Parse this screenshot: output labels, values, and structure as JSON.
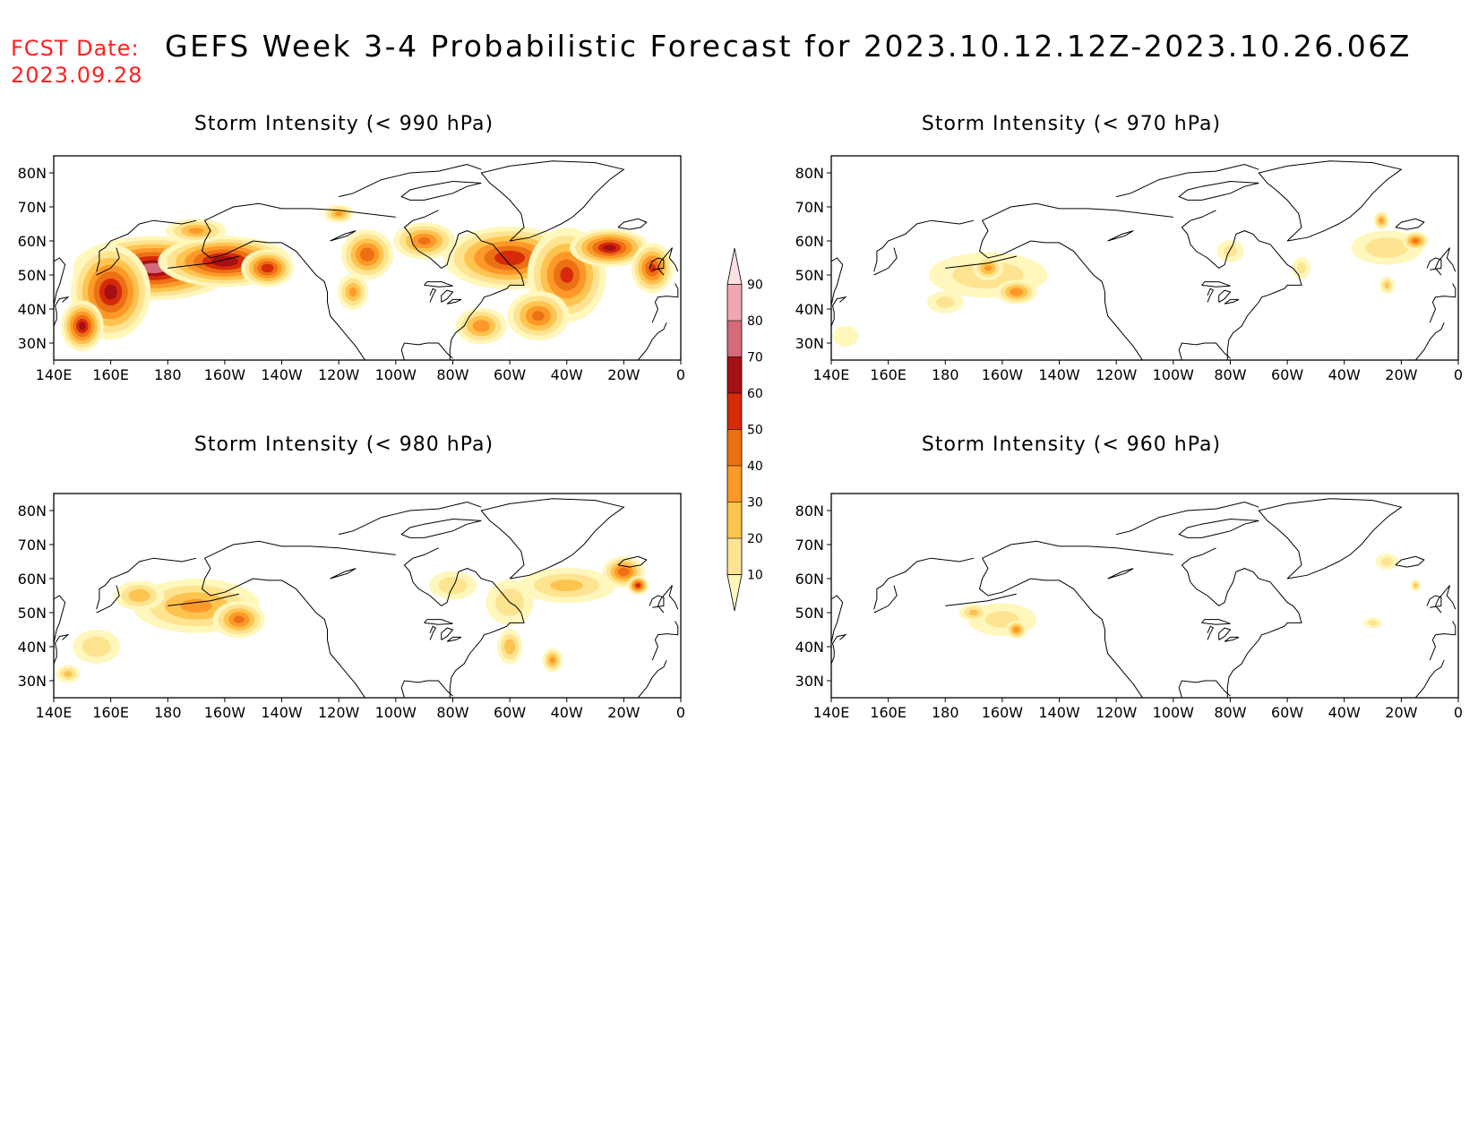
{
  "header": {
    "fcst_label": "FCST Date:",
    "fcst_date": "2023.09.28",
    "title": "GEFS Week 3-4 Probabilistic Forecast for 2023.10.12.12Z-2023.10.26.06Z",
    "fcst_color": "#ff2020"
  },
  "axes": {
    "lon_labels": [
      "140E",
      "160E",
      "180",
      "160W",
      "140W",
      "120W",
      "100W",
      "80W",
      "60W",
      "40W",
      "20W",
      "0"
    ],
    "lat_labels": [
      "80N",
      "70N",
      "60N",
      "50N",
      "40N",
      "30N"
    ],
    "lat_values": [
      80,
      70,
      60,
      50,
      40,
      30
    ],
    "lon_range_deg_east": [
      140,
      360
    ],
    "lat_range": [
      25,
      85
    ]
  },
  "colorbar": {
    "levels": [
      10,
      20,
      30,
      40,
      50,
      60,
      70,
      80,
      90
    ],
    "level_labels": [
      "90",
      "80",
      "70",
      "60",
      "50",
      "40",
      "30",
      "20",
      "10"
    ],
    "colors": [
      "#fff7bc",
      "#fee391",
      "#fec44f",
      "#fe9929",
      "#ec7014",
      "#d62a0a",
      "#a50f15",
      "#d46a7a",
      "#f1a7b1",
      "#fde0e4"
    ]
  },
  "panels": [
    {
      "title": "Storm Intensity (< 990 hPa)",
      "blobs": [
        {
          "lon": 175,
          "lat": 52,
          "rlon": 30,
          "rlat": 10,
          "v": 80
        },
        {
          "lon": 200,
          "lat": 54,
          "rlon": 25,
          "rlat": 8,
          "v": 75
        },
        {
          "lon": 160,
          "lat": 45,
          "rlon": 15,
          "rlat": 15,
          "v": 70
        },
        {
          "lon": 150,
          "lat": 35,
          "rlon": 8,
          "rlat": 8,
          "v": 70
        },
        {
          "lon": 215,
          "lat": 52,
          "rlon": 10,
          "rlat": 6,
          "v": 65
        },
        {
          "lon": 190,
          "lat": 63,
          "rlon": 12,
          "rlat": 4,
          "v": 40
        },
        {
          "lon": 250,
          "lat": 56,
          "rlon": 10,
          "rlat": 8,
          "v": 55
        },
        {
          "lon": 245,
          "lat": 45,
          "rlon": 6,
          "rlat": 6,
          "v": 40
        },
        {
          "lon": 270,
          "lat": 60,
          "rlon": 12,
          "rlat": 6,
          "v": 50
        },
        {
          "lon": 300,
          "lat": 55,
          "rlon": 25,
          "rlat": 10,
          "v": 65
        },
        {
          "lon": 320,
          "lat": 50,
          "rlon": 15,
          "rlat": 15,
          "v": 60
        },
        {
          "lon": 335,
          "lat": 58,
          "rlon": 15,
          "rlat": 6,
          "v": 70
        },
        {
          "lon": 350,
          "lat": 52,
          "rlon": 8,
          "rlat": 8,
          "v": 60
        },
        {
          "lon": 290,
          "lat": 35,
          "rlon": 10,
          "rlat": 6,
          "v": 45
        },
        {
          "lon": 310,
          "lat": 38,
          "rlon": 12,
          "rlat": 8,
          "v": 50
        },
        {
          "lon": 240,
          "lat": 68,
          "rlon": 6,
          "rlat": 3,
          "v": 40
        }
      ]
    },
    {
      "title": "Storm Intensity (< 970 hPa)",
      "blobs": [
        {
          "lon": 195,
          "lat": 50,
          "rlon": 25,
          "rlat": 8,
          "v": 25
        },
        {
          "lon": 205,
          "lat": 45,
          "rlon": 8,
          "rlat": 4,
          "v": 45
        },
        {
          "lon": 195,
          "lat": 52,
          "rlon": 6,
          "rlat": 4,
          "v": 40
        },
        {
          "lon": 180,
          "lat": 42,
          "rlon": 8,
          "rlat": 4,
          "v": 20
        },
        {
          "lon": 145,
          "lat": 32,
          "rlon": 6,
          "rlat": 4,
          "v": 15
        },
        {
          "lon": 335,
          "lat": 58,
          "rlon": 15,
          "rlat": 6,
          "v": 25
        },
        {
          "lon": 345,
          "lat": 60,
          "rlon": 5,
          "rlat": 3,
          "v": 50
        },
        {
          "lon": 333,
          "lat": 66,
          "rlon": 3,
          "rlat": 3,
          "v": 40
        },
        {
          "lon": 280,
          "lat": 57,
          "rlon": 6,
          "rlat": 4,
          "v": 20
        },
        {
          "lon": 335,
          "lat": 47,
          "rlon": 3,
          "rlat": 3,
          "v": 30
        },
        {
          "lon": 305,
          "lat": 52,
          "rlon": 4,
          "rlat": 4,
          "v": 20
        }
      ]
    },
    {
      "title": "Storm Intensity (< 980 hPa)",
      "blobs": [
        {
          "lon": 190,
          "lat": 52,
          "rlon": 25,
          "rlat": 9,
          "v": 40
        },
        {
          "lon": 205,
          "lat": 48,
          "rlon": 10,
          "rlat": 6,
          "v": 50
        },
        {
          "lon": 170,
          "lat": 55,
          "rlon": 10,
          "rlat": 5,
          "v": 35
        },
        {
          "lon": 155,
          "lat": 40,
          "rlon": 10,
          "rlat": 6,
          "v": 25
        },
        {
          "lon": 145,
          "lat": 32,
          "rlon": 5,
          "rlat": 3,
          "v": 30
        },
        {
          "lon": 320,
          "lat": 58,
          "rlon": 20,
          "rlat": 6,
          "v": 30
        },
        {
          "lon": 340,
          "lat": 62,
          "rlon": 8,
          "rlat": 5,
          "v": 55
        },
        {
          "lon": 345,
          "lat": 58,
          "rlon": 4,
          "rlat": 3,
          "v": 65
        },
        {
          "lon": 300,
          "lat": 53,
          "rlon": 10,
          "rlat": 8,
          "v": 25
        },
        {
          "lon": 280,
          "lat": 58,
          "rlon": 10,
          "rlat": 5,
          "v": 25
        },
        {
          "lon": 300,
          "lat": 40,
          "rlon": 5,
          "rlat": 6,
          "v": 35
        },
        {
          "lon": 315,
          "lat": 36,
          "rlon": 4,
          "rlat": 4,
          "v": 40
        }
      ]
    },
    {
      "title": "Storm Intensity (< 960 hPa)",
      "blobs": [
        {
          "lon": 200,
          "lat": 48,
          "rlon": 15,
          "rlat": 6,
          "v": 20
        },
        {
          "lon": 205,
          "lat": 45,
          "rlon": 4,
          "rlat": 3,
          "v": 45
        },
        {
          "lon": 190,
          "lat": 50,
          "rlon": 6,
          "rlat": 3,
          "v": 30
        },
        {
          "lon": 335,
          "lat": 65,
          "rlon": 5,
          "rlat": 3,
          "v": 20
        },
        {
          "lon": 345,
          "lat": 58,
          "rlon": 2,
          "rlat": 2,
          "v": 30
        },
        {
          "lon": 330,
          "lat": 47,
          "rlon": 4,
          "rlat": 2,
          "v": 20
        }
      ]
    }
  ]
}
